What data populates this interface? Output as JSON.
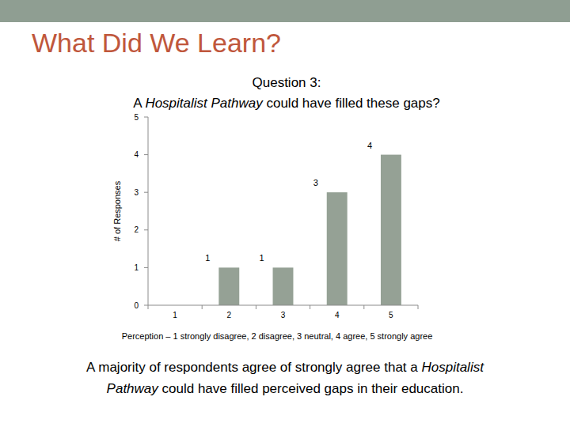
{
  "slide": {
    "title": "What Did We Learn?",
    "caption": [
      "A majority of respondents agree of strongly agree that a ",
      "Hospitalist Pathway",
      " could have filled perceived gaps in their education."
    ]
  },
  "chart_data": {
    "type": "bar",
    "title": "Question 3:",
    "subtitle": [
      "A ",
      "Hospitalist Pathway",
      " could have filled these gaps?"
    ],
    "x_label": "Perception – 1 strongly disagree, 2 disagree, 3 neutral, 4 agree, 5 strongly agree",
    "y_label": "# of Responses",
    "categories": [
      "1",
      "2",
      "3",
      "4",
      "5"
    ],
    "values": [
      0,
      1,
      1,
      3,
      4
    ],
    "color": "#95a195",
    "ylim": [
      0,
      5
    ],
    "yticks": [
      0,
      1,
      2,
      3,
      4,
      5
    ],
    "grid": false,
    "data_labels": true
  }
}
